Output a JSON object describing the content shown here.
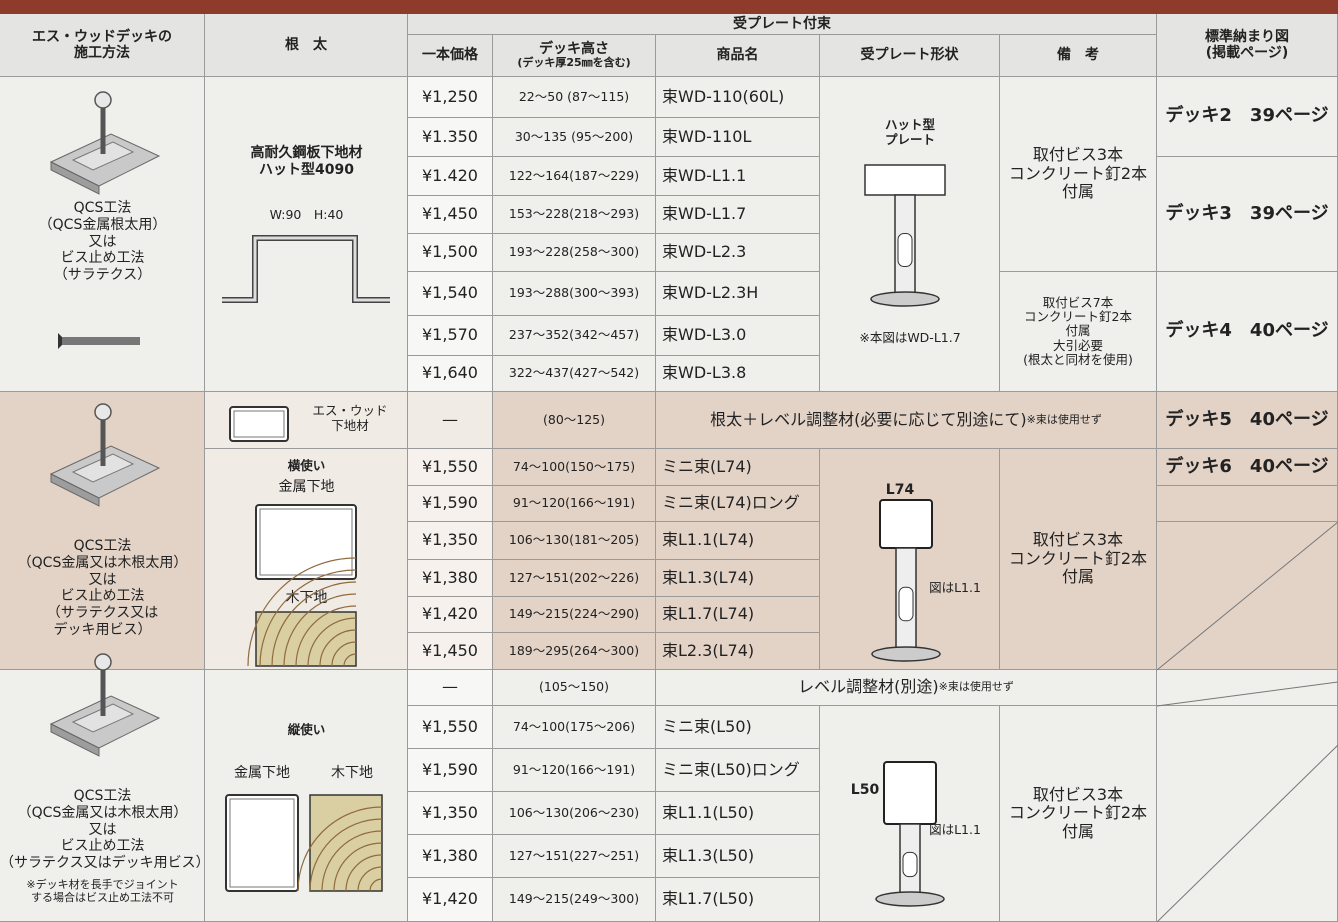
{
  "header": {
    "method": "エス・ウッドデッキの\n施工方法",
    "joist": "根　太",
    "group": "受プレート付束",
    "price": "一本価格",
    "height": "デッキ高さ",
    "height_note": "(デッキ厚25㎜を含む)",
    "product": "商品名",
    "plate": "受プレート形状",
    "notes": "備　考",
    "figure": "標準納まり図",
    "figure_note": "(掲載ページ)"
  },
  "sections": [
    {
      "method": "QCS工法\n（QCS金属根太用）\n又は\nビス止め工法\n（サラテクス）",
      "joist": {
        "title": "高耐久鋼板下地材\nハット型4090",
        "size": "W:90　H:40"
      },
      "rows": [
        {
          "price": "¥1,250",
          "height": "22～50 (87～115)",
          "product": "束WD-110(60L)"
        },
        {
          "price": "¥1.350",
          "height": "30～135 (95～200)",
          "product": "束WD-110L"
        },
        {
          "price": "¥1.420",
          "height": "122～164(187～229)",
          "product": "束WD-L1.1"
        },
        {
          "price": "¥1,450",
          "height": "153～228(218～293)",
          "product": "束WD-L1.7"
        },
        {
          "price": "¥1,500",
          "height": "193～228(258～300)",
          "product": "束WD-L2.3"
        },
        {
          "price": "¥1,540",
          "height": "193～288(300～393)",
          "product": "束WD-L2.3H"
        },
        {
          "price": "¥1,570",
          "height": "237～352(342～457)",
          "product": "束WD-L3.0"
        },
        {
          "price": "¥1,640",
          "height": "322～437(427～542)",
          "product": "束WD-L3.8"
        }
      ],
      "plate": {
        "label": "ハット型\nプレート",
        "caption": "※本図はWD-L1.7"
      },
      "notes": [
        "取付ビス3本\nコンクリート釘2本\n付属",
        "取付ビス7本\nコンクリート釘2本\n付属\n大引必要\n(根太と同材を使用)"
      ],
      "figures": [
        "デッキ2　39ページ",
        "デッキ3　39ページ",
        "デッキ4　40ページ"
      ]
    },
    {
      "method": "QCS工法\n（QCS金属又は木根太用）\n又は\nビス止め工法\n（サラテクス又は\nデッキ用ビス）",
      "intro": {
        "joist": "エス・ウッド\n下地材",
        "price": "—",
        "height": "(80～125)",
        "text": "根太＋レベル調整材(必要に応じて別途にて)",
        "note": "※束は使用せず",
        "figure": "デッキ5　40ページ"
      },
      "joist": {
        "orientation": "横使い",
        "metal": "金属下地",
        "wood": "木下地"
      },
      "rows": [
        {
          "price": "¥1,550",
          "height": "74～100(150～175)",
          "product": "ミニ束(L74)"
        },
        {
          "price": "¥1,590",
          "height": "91～120(166～191)",
          "product": "ミニ束(L74)ロング"
        },
        {
          "price": "¥1,350",
          "height": "106～130(181～205)",
          "product": "束L1.1(L74)"
        },
        {
          "price": "¥1,380",
          "height": "127～151(202～226)",
          "product": "束L1.3(L74)"
        },
        {
          "price": "¥1,420",
          "height": "149～215(224～290)",
          "product": "束L1.7(L74)"
        },
        {
          "price": "¥1,450",
          "height": "189～295(264～300)",
          "product": "束L2.3(L74)"
        }
      ],
      "plate": {
        "label": "L74",
        "caption": "図はL1.1"
      },
      "notes": [
        "取付ビス3本\nコンクリート釘2本\n付属"
      ],
      "figures": [
        "デッキ6　40ページ"
      ]
    },
    {
      "method": "QCS工法\n（QCS金属又は木根太用）\n又は\nビス止め工法\n（サラテクス又はデッキ用ビス）",
      "method_note": "※デッキ材を長手でジョイント\nする場合はビス止め工法不可",
      "intro": {
        "price": "—",
        "height": "(105～150)",
        "text": "レベル調整材(別途)",
        "note": "※束は使用せず"
      },
      "joist": {
        "orientation": "縦使い",
        "metal": "金属下地",
        "wood": "木下地"
      },
      "rows": [
        {
          "price": "¥1,550",
          "height": "74～100(175～206)",
          "product": "ミニ束(L50)"
        },
        {
          "price": "¥1,590",
          "height": "91～120(166～191)",
          "product": "ミニ束(L50)ロング"
        },
        {
          "price": "¥1,350",
          "height": "106～130(206～230)",
          "product": "束L1.1(L50)"
        },
        {
          "price": "¥1,380",
          "height": "127～151(227～251)",
          "product": "束L1.3(L50)"
        },
        {
          "price": "¥1,420",
          "height": "149～215(249～300)",
          "product": "束L1.7(L50)"
        }
      ],
      "plate": {
        "label": "L50",
        "caption": "図はL1.1"
      },
      "notes": [
        "取付ビス3本\nコンクリート釘2本\n付属"
      ]
    }
  ]
}
